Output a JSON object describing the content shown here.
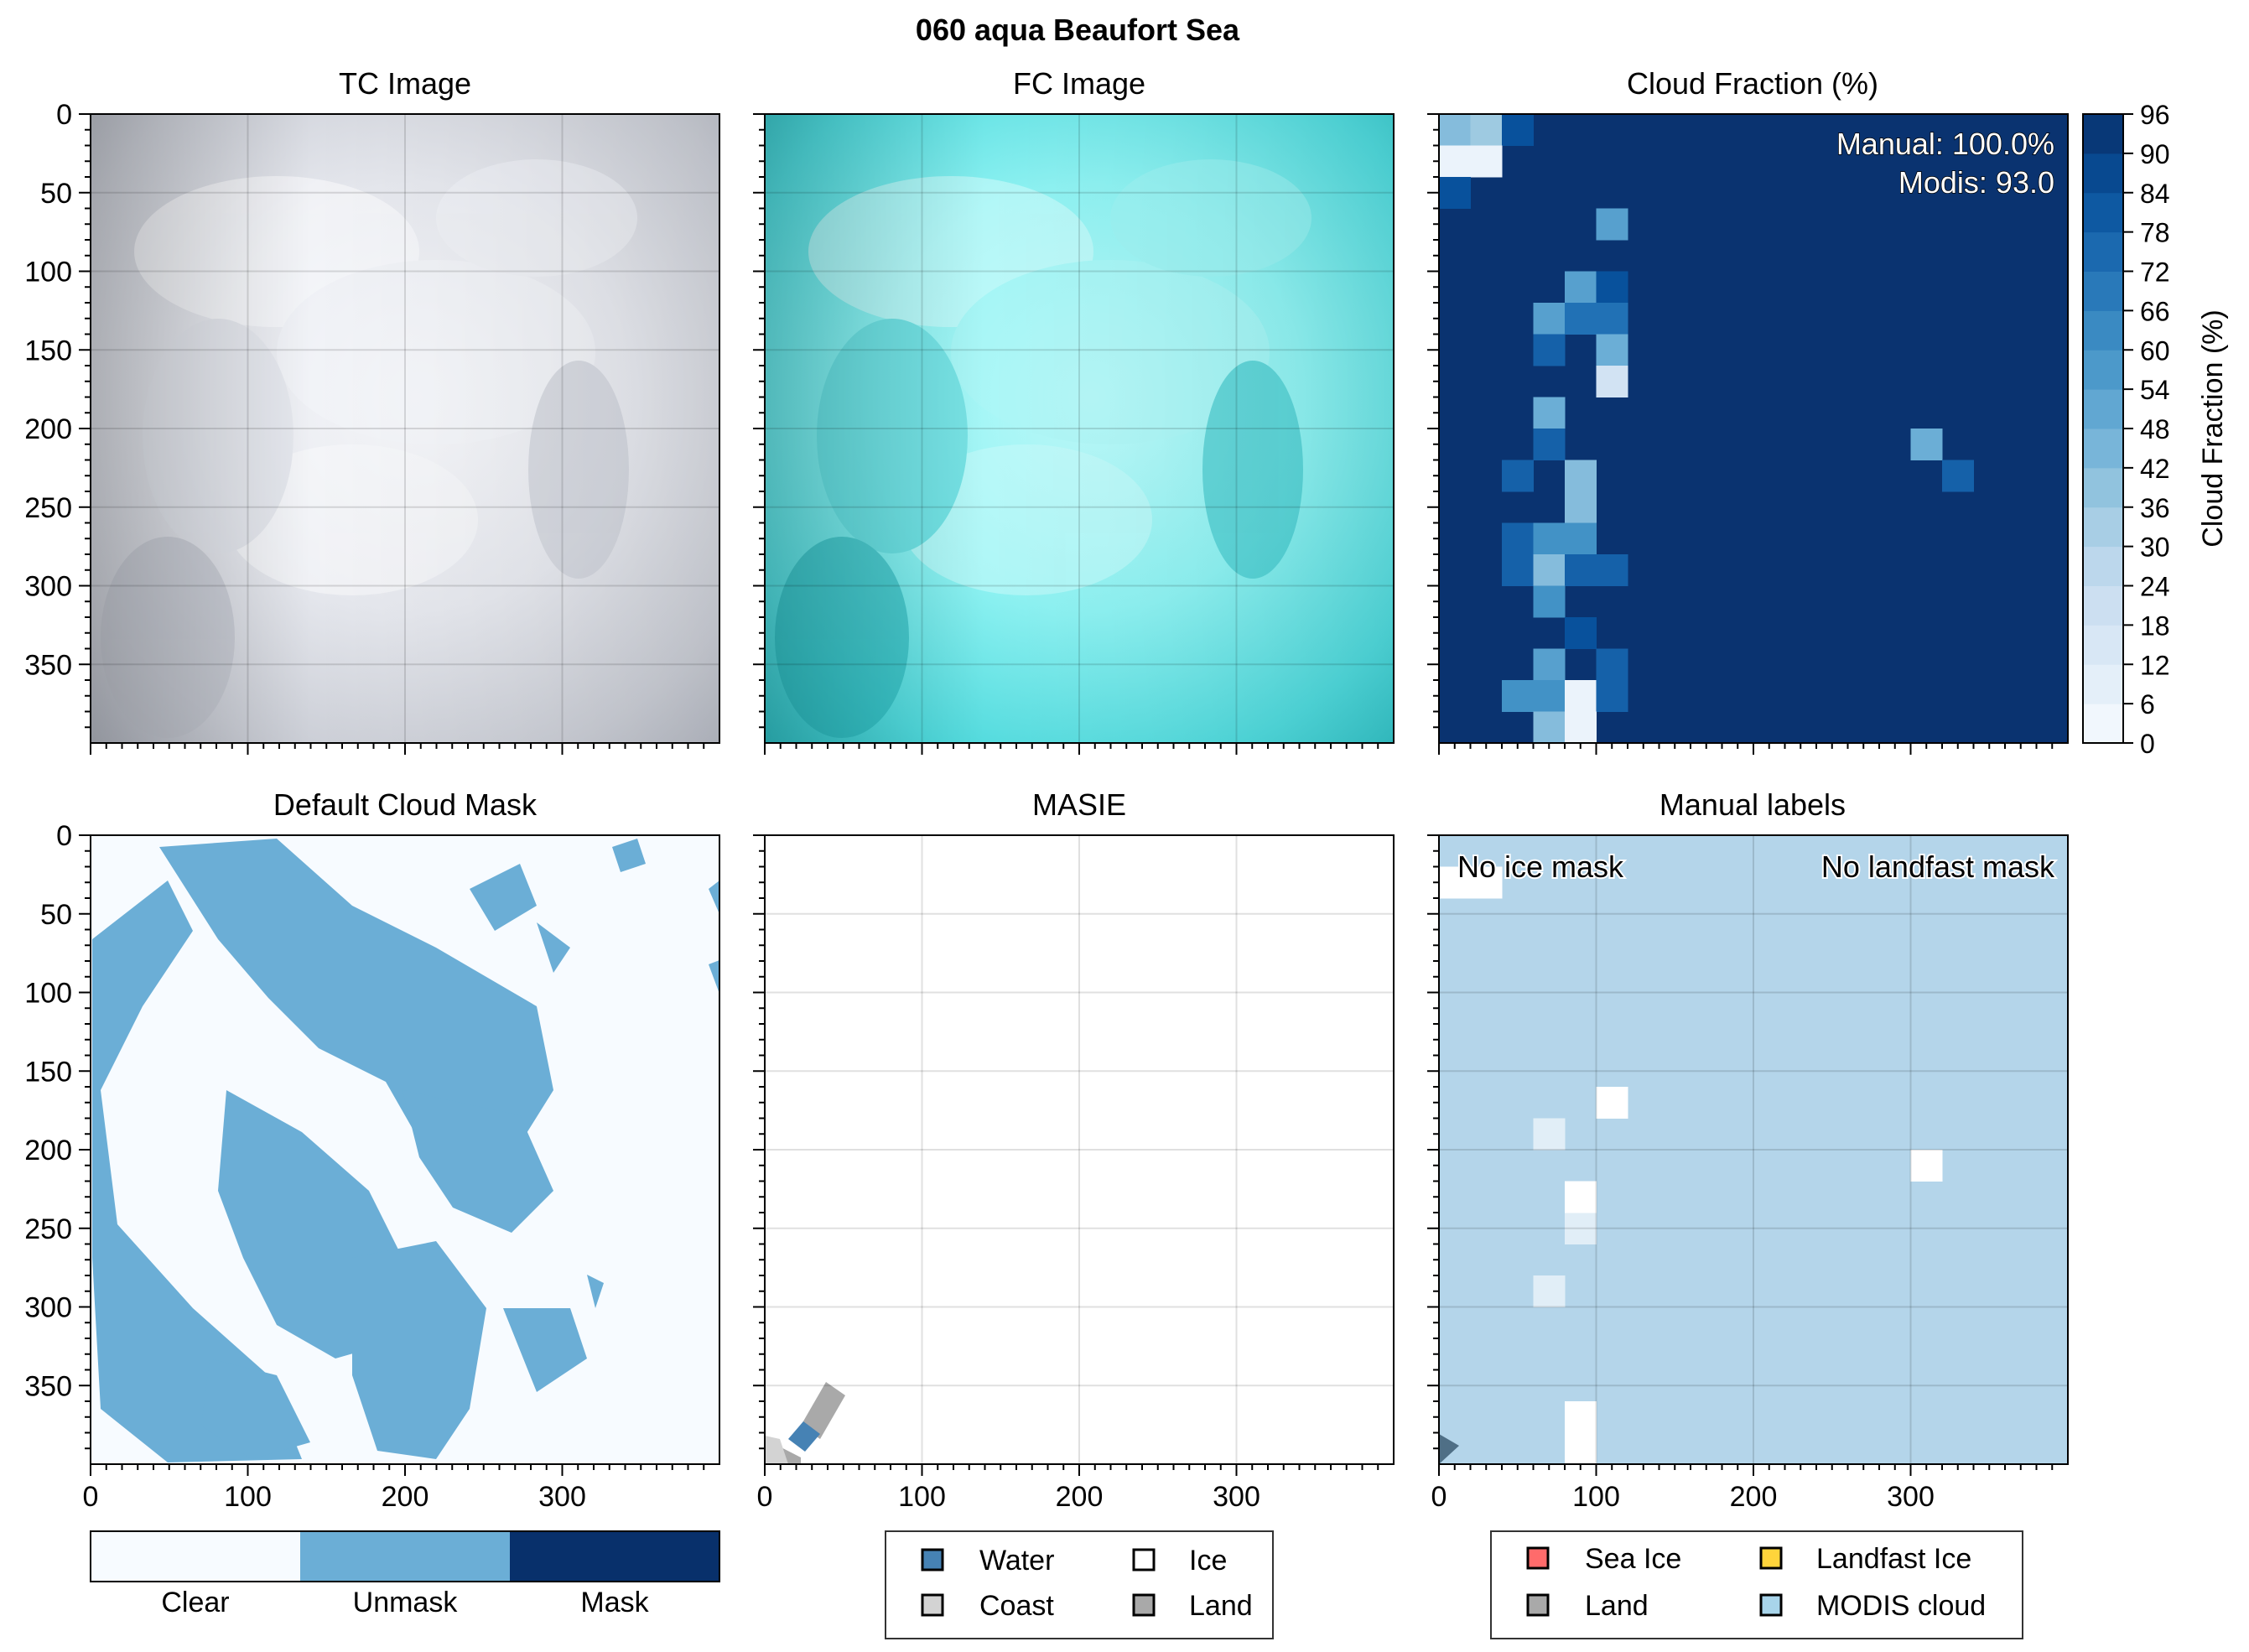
{
  "figure": {
    "title": "060 aqua Beaufort Sea"
  },
  "panels": {
    "tc": {
      "title": "TC Image"
    },
    "fc": {
      "title": "FC Image"
    },
    "cf": {
      "title": "Cloud Fraction (%)",
      "annotation_manual": "Manual: 100.0%",
      "annotation_modis": "Modis: 93.0"
    },
    "dcm": {
      "title": "Default Cloud Mask"
    },
    "masie": {
      "title": "MASIE"
    },
    "manual": {
      "title": "Manual labels",
      "note_left": "No ice mask",
      "note_right": "No landfast mask"
    }
  },
  "colorbar": {
    "label": "Cloud Fraction (%)",
    "ticks": [
      0,
      6,
      12,
      18,
      24,
      30,
      36,
      42,
      48,
      54,
      60,
      66,
      72,
      78,
      84,
      90,
      96
    ]
  },
  "mask_legend": {
    "items": [
      {
        "label": "Clear",
        "color": "#f7fbff"
      },
      {
        "label": "Unmask",
        "color": "#6baed6"
      },
      {
        "label": "Mask",
        "color": "#08306b"
      }
    ]
  },
  "masie_legend": {
    "items": [
      {
        "label": "Water",
        "color": "#4682b4"
      },
      {
        "label": "Ice",
        "color": "#ffffff"
      },
      {
        "label": "Coast",
        "color": "#d3d3d3"
      },
      {
        "label": "Land",
        "color": "#a9a9a9"
      }
    ]
  },
  "manual_legend": {
    "items": [
      {
        "label": "Sea Ice",
        "color": "#ff6b6b"
      },
      {
        "label": "Landfast Ice",
        "color": "#ffd43b"
      },
      {
        "label": "Land",
        "color": "#a9a9a9"
      },
      {
        "label": "MODIS cloud",
        "color": "#a8d4ea"
      }
    ]
  },
  "chart_data": [
    {
      "type": "heatmap",
      "title": "Cloud Fraction (%)",
      "xlim": [
        0,
        400
      ],
      "ylim": [
        400,
        0
      ],
      "xticks": [
        0,
        100,
        200,
        300
      ],
      "yticks": [
        0,
        50,
        100,
        150,
        200,
        250,
        300,
        350
      ],
      "grid": true,
      "background_value": 96,
      "cell_size": 20,
      "colorbar_range": [
        0,
        96
      ],
      "cells": [
        [
          0,
          0,
          42
        ],
        [
          20,
          0,
          36
        ],
        [
          40,
          0,
          84
        ],
        [
          0,
          20,
          6
        ],
        [
          20,
          20,
          6
        ],
        [
          0,
          40,
          84
        ],
        [
          100,
          60,
          54
        ],
        [
          80,
          100,
          54
        ],
        [
          100,
          100,
          84
        ],
        [
          60,
          120,
          54
        ],
        [
          80,
          120,
          72
        ],
        [
          100,
          120,
          72
        ],
        [
          60,
          140,
          78
        ],
        [
          100,
          140,
          48
        ],
        [
          100,
          160,
          18
        ],
        [
          60,
          180,
          48
        ],
        [
          60,
          200,
          78
        ],
        [
          300,
          200,
          48
        ],
        [
          40,
          220,
          78
        ],
        [
          80,
          220,
          42
        ],
        [
          320,
          220,
          78
        ],
        [
          80,
          240,
          42
        ],
        [
          40,
          260,
          78
        ],
        [
          60,
          260,
          60
        ],
        [
          80,
          260,
          60
        ],
        [
          40,
          280,
          78
        ],
        [
          60,
          280,
          42
        ],
        [
          80,
          280,
          78
        ],
        [
          100,
          280,
          78
        ],
        [
          60,
          300,
          60
        ],
        [
          80,
          320,
          84
        ],
        [
          60,
          340,
          54
        ],
        [
          100,
          340,
          78
        ],
        [
          40,
          360,
          60
        ],
        [
          60,
          360,
          60
        ],
        [
          80,
          360,
          6
        ],
        [
          100,
          360,
          78
        ],
        [
          60,
          380,
          42
        ],
        [
          80,
          380,
          6
        ]
      ]
    },
    {
      "type": "heatmap",
      "title": "Manual labels",
      "xlim": [
        0,
        400
      ],
      "ylim": [
        400,
        0
      ],
      "xticks": [
        0,
        100,
        200,
        300
      ],
      "yticks": [
        0,
        50,
        100,
        150,
        200,
        250,
        300,
        350
      ],
      "grid": true,
      "background": "MODIS cloud",
      "clear_cells": [
        [
          0,
          20
        ],
        [
          20,
          20
        ],
        [
          100,
          160
        ],
        [
          60,
          180
        ],
        [
          300,
          200
        ],
        [
          80,
          220
        ],
        [
          80,
          240
        ],
        [
          60,
          280
        ],
        [
          80,
          360
        ],
        [
          80,
          380
        ]
      ]
    },
    {
      "type": "heatmap",
      "title": "MASIE",
      "xlim": [
        0,
        400
      ],
      "ylim": [
        400,
        0
      ],
      "xticks": [
        0,
        100,
        200,
        300
      ],
      "yticks": [
        0,
        50,
        100,
        150,
        200,
        250,
        300,
        350
      ],
      "grid": true,
      "classes": [
        "Water",
        "Ice",
        "Coast",
        "Land"
      ]
    }
  ]
}
